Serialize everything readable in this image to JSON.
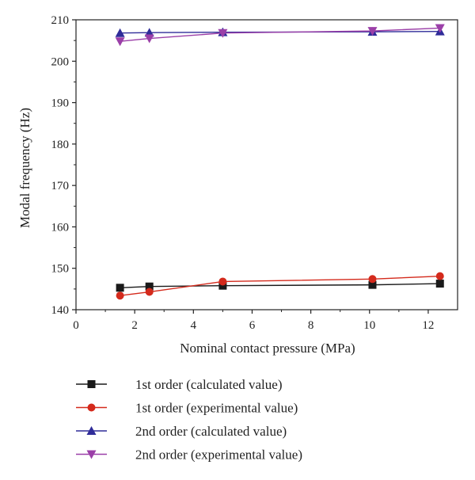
{
  "chart_data": {
    "type": "line",
    "xlabel": "Nominal contact pressure (MPa)",
    "ylabel": "Modal frequency (Hz)",
    "xlim": [
      0,
      13
    ],
    "ylim": [
      140,
      210
    ],
    "xticks": [
      0,
      2,
      4,
      6,
      8,
      10,
      12
    ],
    "yticks": [
      140,
      150,
      160,
      170,
      180,
      190,
      200,
      210
    ],
    "grid": false,
    "legend_position": "below-plot",
    "series": [
      {
        "name": "1st order (calculated value)",
        "color": "#1a1a1a",
        "marker": "square",
        "x": [
          1.5,
          2.5,
          5.0,
          10.1,
          12.4
        ],
        "y": [
          145.3,
          145.6,
          145.8,
          146.0,
          146.3
        ]
      },
      {
        "name": "1st order (experimental value)",
        "color": "#d42a1c",
        "marker": "circle",
        "x": [
          1.5,
          2.5,
          5.0,
          10.1,
          12.4
        ],
        "y": [
          143.4,
          144.3,
          146.8,
          147.4,
          148.1
        ]
      },
      {
        "name": "2nd order (calculated value)",
        "color": "#2f2c99",
        "marker": "triangle-up",
        "x": [
          1.5,
          2.5,
          5.0,
          10.1,
          12.4
        ],
        "y": [
          206.8,
          206.9,
          207.0,
          207.1,
          207.2
        ]
      },
      {
        "name": "2nd order (experimental value)",
        "color": "#9b3fa8",
        "marker": "triangle-down",
        "x": [
          1.5,
          2.5,
          5.0,
          10.1,
          12.4
        ],
        "y": [
          204.8,
          205.5,
          206.8,
          207.3,
          208.0
        ]
      }
    ]
  }
}
